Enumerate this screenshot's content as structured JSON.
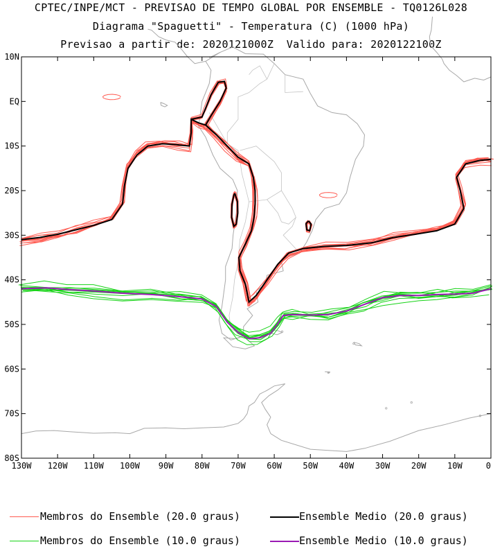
{
  "titles": {
    "line1": "CPTEC/INPE/MCT - PREVISAO DE TEMPO GLOBAL POR ENSEMBLE - TQ0126L028",
    "line2": "Diagrama \"Spaguetti\" - Temperatura (C) (1000 hPa)",
    "line3": "Previsao a partir de: 2020121000Z  Valido para: 2020122100Z"
  },
  "chart_data": {
    "type": "line",
    "xlim": [
      -130,
      0
    ],
    "ylim": [
      -80,
      10
    ],
    "x_ticks": [
      {
        "value": -130,
        "label": "130W"
      },
      {
        "value": -120,
        "label": "120W"
      },
      {
        "value": -110,
        "label": "110W"
      },
      {
        "value": -100,
        "label": "100W"
      },
      {
        "value": -90,
        "label": "90W"
      },
      {
        "value": -80,
        "label": "80W"
      },
      {
        "value": -70,
        "label": "70W"
      },
      {
        "value": -60,
        "label": "60W"
      },
      {
        "value": -50,
        "label": "50W"
      },
      {
        "value": -40,
        "label": "40W"
      },
      {
        "value": -30,
        "label": "30W"
      },
      {
        "value": -20,
        "label": "20W"
      },
      {
        "value": -10,
        "label": "10W"
      },
      {
        "value": 0,
        "label": "0"
      }
    ],
    "y_ticks": [
      {
        "value": 10,
        "label": "10N"
      },
      {
        "value": 0,
        "label": "EQ"
      },
      {
        "value": -10,
        "label": "10S"
      },
      {
        "value": -20,
        "label": "20S"
      },
      {
        "value": -30,
        "label": "30S"
      },
      {
        "value": -40,
        "label": "40S"
      },
      {
        "value": -50,
        "label": "50S"
      },
      {
        "value": -60,
        "label": "60S"
      },
      {
        "value": -70,
        "label": "70S"
      },
      {
        "value": -80,
        "label": "80S"
      }
    ],
    "grid": false,
    "legend_position": "bottom",
    "series": [
      {
        "name": "Ensemble Medio (20.0 graus)",
        "role": "mean-20",
        "color": "#000000",
        "points": [
          [
            -130,
            -31
          ],
          [
            -125,
            -30.5
          ],
          [
            -120,
            -29.8
          ],
          [
            -115,
            -28.8
          ],
          [
            -110,
            -27.8
          ],
          [
            -105,
            -26.5
          ],
          [
            -102,
            -23
          ],
          [
            -101.5,
            -19
          ],
          [
            -100.5,
            -15
          ],
          [
            -98,
            -12
          ],
          [
            -95,
            -10
          ],
          [
            -91,
            -9.5
          ],
          [
            -87,
            -9.7
          ],
          [
            -83.5,
            -10
          ],
          [
            -83,
            -7
          ],
          [
            -83,
            -4
          ],
          [
            -81,
            -4.8
          ],
          [
            -79,
            -5.3
          ],
          [
            -76,
            -7.5
          ],
          [
            -73,
            -10
          ],
          [
            -70,
            -12.5
          ],
          [
            -67,
            -14
          ],
          [
            -65.8,
            -17
          ],
          [
            -65.3,
            -20
          ],
          [
            -65.3,
            -23
          ],
          [
            -65.6,
            -26
          ],
          [
            -66.3,
            -29
          ],
          [
            -68,
            -32
          ],
          [
            -69.8,
            -35
          ],
          [
            -69.5,
            -38
          ],
          [
            -68,
            -41
          ],
          [
            -67,
            -45
          ],
          [
            -65,
            -43.5
          ],
          [
            -62,
            -40
          ],
          [
            -59,
            -36.5
          ],
          [
            -56,
            -34
          ],
          [
            -52,
            -33
          ],
          [
            -46,
            -32.5
          ],
          [
            -40,
            -32.3
          ],
          [
            -33,
            -31.7
          ],
          [
            -27,
            -30.5
          ],
          [
            -21,
            -29.8
          ],
          [
            -15,
            -29
          ],
          [
            -10,
            -27.5
          ],
          [
            -7.5,
            -24
          ],
          [
            -8.5,
            -20
          ],
          [
            -9.5,
            -17
          ],
          [
            -7,
            -14
          ],
          [
            -3,
            -13.2
          ],
          [
            0,
            -13
          ]
        ]
      },
      {
        "name": "Ensemble Medio (20.0 graus)",
        "role": "mean-20-north",
        "color": "#000000",
        "points": [
          [
            -83,
            -4
          ],
          [
            -80,
            -3.5
          ],
          [
            -79,
            -1.5
          ],
          [
            -77.5,
            1.5
          ],
          [
            -75.5,
            4.3
          ],
          [
            -73.8,
            4.5
          ],
          [
            -73.3,
            3
          ],
          [
            -75,
            0
          ],
          [
            -77.5,
            -3.2
          ],
          [
            -79,
            -5.3
          ]
        ]
      },
      {
        "name": "Ensemble Medio (20.0 graus)",
        "role": "mean-20-atacama",
        "color": "#000000",
        "points": [
          [
            -70.9,
            -20.6
          ],
          [
            -70.2,
            -22.5
          ],
          [
            -70.1,
            -25
          ],
          [
            -70.5,
            -27.5
          ],
          [
            -71.2,
            -28
          ],
          [
            -71.8,
            -26
          ],
          [
            -71.7,
            -23
          ],
          [
            -71.2,
            -21
          ],
          [
            -70.9,
            -20.6
          ]
        ]
      },
      {
        "name": "Ensemble Medio (20.0 graus)",
        "role": "mean-20-parana",
        "color": "#000000",
        "points": [
          [
            -50.5,
            -26.8
          ],
          [
            -49.8,
            -27.5
          ],
          [
            -50.2,
            -29
          ],
          [
            -51,
            -28.8
          ],
          [
            -51.2,
            -27.4
          ],
          [
            -50.5,
            -26.8
          ]
        ]
      },
      {
        "name": "Ensemble Medio (10.0 graus)",
        "role": "mean-10",
        "color": "#9a1ab4",
        "points": [
          [
            -130,
            -42
          ],
          [
            -123,
            -41.8
          ],
          [
            -117,
            -42.2
          ],
          [
            -110,
            -42.5
          ],
          [
            -102,
            -43
          ],
          [
            -94,
            -43.3
          ],
          [
            -86,
            -43.8
          ],
          [
            -80,
            -44.3
          ],
          [
            -76,
            -46
          ],
          [
            -73,
            -49.5
          ],
          [
            -70,
            -51.8
          ],
          [
            -67,
            -53.2
          ],
          [
            -64,
            -53
          ],
          [
            -61,
            -52
          ],
          [
            -59,
            -49.8
          ],
          [
            -57.5,
            -48
          ],
          [
            -55,
            -47.8
          ],
          [
            -50,
            -47.9
          ],
          [
            -45,
            -47.8
          ],
          [
            -40,
            -47
          ],
          [
            -35,
            -45.5
          ],
          [
            -30,
            -44
          ],
          [
            -25,
            -43.5
          ],
          [
            -20,
            -43.5
          ],
          [
            -15,
            -43.3
          ],
          [
            -10,
            -43.2
          ],
          [
            -5,
            -43
          ],
          [
            0,
            -42
          ]
        ]
      },
      {
        "name": "Membros do Ensemble (20.0 graus)",
        "role": "members-20",
        "color": "#ff5a50",
        "members": 10
      },
      {
        "name": "Membros do Ensemble (10.0 graus)",
        "role": "members-10",
        "color": "#16d316",
        "members": 10
      }
    ]
  },
  "legend": {
    "items": [
      {
        "label": "Membros do Ensemble (20.0 graus)",
        "color": "#ff5a50"
      },
      {
        "label": "Ensemble Medio (20.0 graus)",
        "color": "#000000"
      },
      {
        "label": "Membros do Ensemble (10.0 graus)",
        "color": "#16d316"
      },
      {
        "label": "Ensemble Medio (10.0 graus)",
        "color": "#9a1ab4"
      }
    ]
  },
  "map_color": "#a8a8a8"
}
